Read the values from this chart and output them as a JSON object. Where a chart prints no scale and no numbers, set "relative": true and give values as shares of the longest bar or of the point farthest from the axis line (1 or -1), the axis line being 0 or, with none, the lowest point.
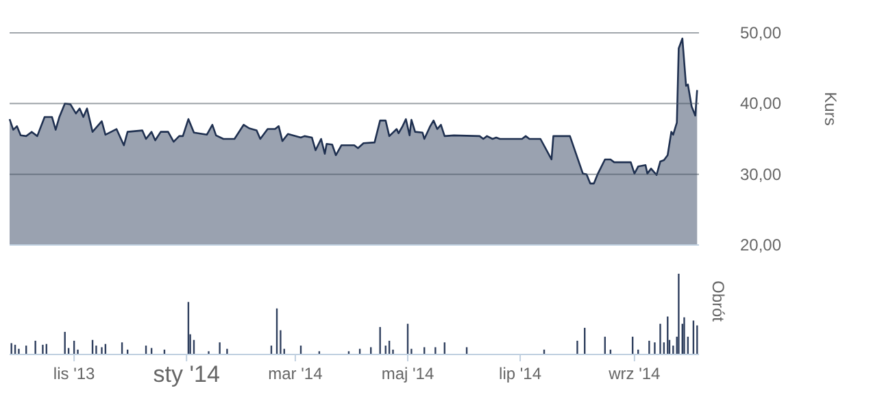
{
  "chart_data": [
    {
      "type": "area",
      "ylabel": "Kurs",
      "xlim": [
        "2013-09-27",
        "2014-10-06"
      ],
      "ylim": [
        20,
        50
      ],
      "yticks": [
        {
          "value": 20,
          "label": "20,00"
        },
        {
          "value": 30,
          "label": "30,00"
        },
        {
          "value": 40,
          "label": "40,00"
        },
        {
          "value": 50,
          "label": "50,00"
        }
      ],
      "grid": "y",
      "tick_labels": "y",
      "series": [
        {
          "color": "#1f3050",
          "x": [
            "2013-09-27",
            "2013-09-29",
            "2013-10-01",
            "2013-10-03",
            "2013-10-06",
            "2013-10-09",
            "2013-10-12",
            "2013-10-16",
            "2013-10-20",
            "2013-10-22",
            "2013-10-24",
            "2013-10-27",
            "2013-10-30",
            "2013-11-02",
            "2013-11-04",
            "2013-11-06",
            "2013-11-08",
            "2013-11-11",
            "2013-11-16",
            "2013-11-18",
            "2013-11-24",
            "2013-11-28",
            "2013-11-30",
            "2013-12-08",
            "2013-12-10",
            "2013-12-13",
            "2013-12-15",
            "2013-12-18",
            "2013-12-22",
            "2013-12-25",
            "2013-12-28",
            "2013-12-30",
            "2014-01-02",
            "2014-01-05",
            "2014-01-12",
            "2014-01-15",
            "2014-01-17",
            "2014-01-21",
            "2014-01-27",
            "2014-02-01",
            "2014-02-04",
            "2014-02-08",
            "2014-02-10",
            "2014-02-14",
            "2014-02-18",
            "2014-02-20",
            "2014-02-22",
            "2014-02-25",
            "2014-03-04",
            "2014-03-06",
            "2014-03-10",
            "2014-03-12",
            "2014-03-15",
            "2014-03-17",
            "2014-03-18",
            "2014-03-21",
            "2014-03-23",
            "2014-03-26",
            "2014-04-02",
            "2014-04-04",
            "2014-04-07",
            "2014-04-13",
            "2014-04-16",
            "2014-04-19",
            "2014-04-21",
            "2014-04-25",
            "2014-04-26",
            "2014-04-28",
            "2014-04-30",
            "2014-05-02",
            "2014-05-03",
            "2014-05-05",
            "2014-05-09",
            "2014-05-10",
            "2014-05-13",
            "2014-05-15",
            "2014-05-17",
            "2014-05-19",
            "2014-05-21",
            "2014-05-26",
            "2014-06-09",
            "2014-06-11",
            "2014-06-13",
            "2014-06-16",
            "2014-06-18",
            "2014-06-20",
            "2014-07-02",
            "2014-07-04",
            "2014-07-06",
            "2014-07-12",
            "2014-07-18",
            "2014-07-19",
            "2014-07-28",
            "2014-08-04",
            "2014-08-06",
            "2014-08-08",
            "2014-08-10",
            "2014-08-12",
            "2014-08-16",
            "2014-08-19",
            "2014-08-21",
            "2014-08-30",
            "2014-09-01",
            "2014-09-03",
            "2014-09-07",
            "2014-09-08",
            "2014-09-10",
            "2014-09-13",
            "2014-09-15",
            "2014-09-17",
            "2014-09-19",
            "2014-09-21",
            "2014-09-22",
            "2014-09-24",
            "2014-09-25",
            "2014-09-27",
            "2014-09-29",
            "2014-09-30",
            "2014-10-02",
            "2014-10-04",
            "2014-10-05"
          ],
          "values": [
            37.8,
            36.3,
            36.8,
            35.5,
            35.4,
            36.0,
            35.4,
            38.1,
            38.1,
            36.3,
            38.1,
            40.0,
            39.9,
            38.6,
            39.3,
            38.1,
            39.3,
            36.0,
            37.5,
            35.6,
            36.4,
            34.1,
            36.0,
            36.2,
            35.0,
            36.0,
            34.8,
            36.0,
            36.0,
            34.6,
            35.4,
            35.4,
            37.8,
            35.9,
            35.6,
            37.0,
            35.5,
            35.0,
            35.0,
            37.0,
            36.5,
            36.2,
            35.0,
            36.4,
            36.4,
            36.8,
            34.7,
            35.7,
            35.2,
            35.4,
            35.2,
            33.4,
            35.0,
            32.9,
            34.3,
            34.2,
            32.7,
            34.1,
            34.1,
            33.7,
            34.4,
            34.5,
            37.6,
            37.6,
            35.4,
            36.4,
            35.8,
            36.7,
            37.8,
            35.5,
            37.7,
            36.0,
            35.9,
            35.0,
            36.7,
            37.6,
            36.4,
            37.0,
            35.4,
            35.5,
            35.4,
            35.0,
            35.4,
            35.0,
            35.2,
            35.0,
            35.0,
            35.4,
            35.0,
            35.0,
            32.1,
            35.4,
            35.4,
            30.1,
            30.0,
            28.7,
            28.7,
            30.0,
            32.1,
            32.1,
            31.7,
            31.7,
            30.1,
            31.1,
            31.3,
            30.1,
            30.8,
            29.9,
            31.8,
            32.0,
            32.7,
            36.0,
            35.6,
            37.3,
            47.8,
            49.2,
            42.5,
            42.7,
            39.6,
            38.3,
            41.9
          ]
        }
      ]
    },
    {
      "type": "bar",
      "relative": true,
      "ylabel": "Obrót",
      "xlim": [
        "2013-09-27",
        "2014-10-06"
      ],
      "xticks": [
        {
          "value": "2013-11-01",
          "label": "lis '13"
        },
        {
          "value": "2014-01-01",
          "label": "sty '14"
        },
        {
          "value": "2014-03-01",
          "label": "mar '14"
        },
        {
          "value": "2014-05-01",
          "label": "maj '14"
        },
        {
          "value": "2014-07-01",
          "label": "lip '14"
        },
        {
          "value": "2014-09-01",
          "label": "wrz '14"
        }
      ],
      "tick_labels": "x",
      "series": [
        {
          "color": "#2f3f5e",
          "x": [
            "2013-09-28",
            "2013-09-30",
            "2013-10-02",
            "2013-10-06",
            "2013-10-11",
            "2013-10-15",
            "2013-10-17",
            "2013-10-27",
            "2013-10-29",
            "2013-11-01",
            "2013-11-03",
            "2013-11-11",
            "2013-11-13",
            "2013-11-16",
            "2013-11-18",
            "2013-11-27",
            "2013-11-30",
            "2013-12-10",
            "2013-12-13",
            "2013-12-20",
            "2014-01-02",
            "2014-01-03",
            "2014-01-05",
            "2014-01-13",
            "2014-01-19",
            "2014-01-23",
            "2014-02-16",
            "2014-02-19",
            "2014-02-21",
            "2014-02-23",
            "2014-03-04",
            "2014-03-14",
            "2014-03-30",
            "2014-04-05",
            "2014-04-11",
            "2014-04-16",
            "2014-04-19",
            "2014-04-21",
            "2014-04-23",
            "2014-05-01",
            "2014-05-03",
            "2014-05-10",
            "2014-05-16",
            "2014-05-21",
            "2014-06-02",
            "2014-07-14",
            "2014-08-01",
            "2014-08-05",
            "2014-08-16",
            "2014-08-19",
            "2014-08-31",
            "2014-09-03",
            "2014-09-09",
            "2014-09-12",
            "2014-09-15",
            "2014-09-17",
            "2014-09-19",
            "2014-09-20",
            "2014-09-22",
            "2014-09-24",
            "2014-09-25",
            "2014-09-27",
            "2014-09-28",
            "2014-09-30",
            "2014-10-03",
            "2014-10-05"
          ],
          "values": [
            0.14,
            0.12,
            0.07,
            0.11,
            0.17,
            0.12,
            0.13,
            0.28,
            0.08,
            0.17,
            0.06,
            0.18,
            0.11,
            0.09,
            0.13,
            0.15,
            0.06,
            0.11,
            0.08,
            0.06,
            0.65,
            0.25,
            0.18,
            0.04,
            0.15,
            0.07,
            0.11,
            0.57,
            0.3,
            0.07,
            0.11,
            0.04,
            0.04,
            0.07,
            0.09,
            0.34,
            0.11,
            0.17,
            0.06,
            0.38,
            0.07,
            0.09,
            0.09,
            0.15,
            0.09,
            0.06,
            0.17,
            0.33,
            0.22,
            0.06,
            0.22,
            0.06,
            0.17,
            0.15,
            0.38,
            0.15,
            0.47,
            0.18,
            0.11,
            0.22,
            1.0,
            0.38,
            0.46,
            0.22,
            0.42,
            0.36
          ]
        }
      ]
    }
  ]
}
